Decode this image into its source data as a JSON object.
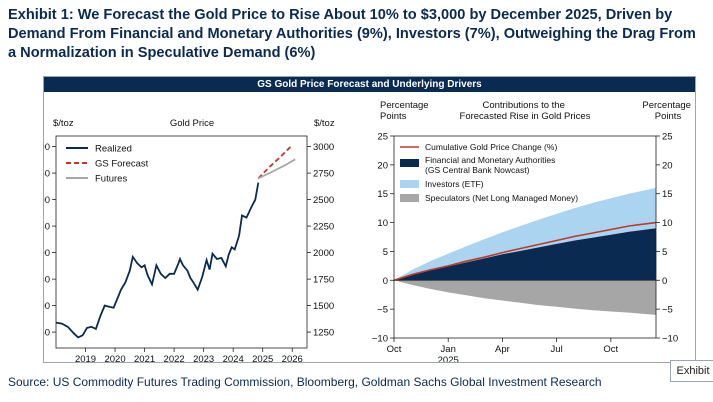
{
  "headline": "Exhibit 1: We Forecast the Gold Price to Rise About 10% to $3,000 by December 2025, Driven by Demand From Financial and Monetary Authorities (9%), Investors (7%), Outweighing the Drag From a Normalization in Speculative Demand (6%)",
  "banner": "GS Gold Price Forecast and Underlying Drivers",
  "source": "Source: US Commodity Futures Trading Commission, Bloomberg, Goldman Sachs Global Investment Research",
  "tag_label": "Exhibit",
  "colors": {
    "navy": "#0b2a52",
    "red": "#c0392b",
    "gray": "#a6a6a6",
    "light_blue": "#aad4f0"
  },
  "chart_data": [
    {
      "type": "line",
      "title": "Gold Price",
      "ylabel_left": "$/toz",
      "ylabel_right": "$/toz",
      "ylim": [
        1100,
        3100
      ],
      "yticks": [
        1250,
        1500,
        1750,
        2000,
        2250,
        2500,
        2750,
        3000
      ],
      "xlim": [
        2018.0,
        2026.5
      ],
      "xticks": [
        "2019",
        "2020",
        "2021",
        "2022",
        "2023",
        "2024",
        "2025",
        "2026"
      ],
      "xtick_values": [
        2019,
        2020,
        2021,
        2022,
        2023,
        2024,
        2025,
        2026
      ],
      "legend": [
        "Realized",
        "GS Forecast",
        "Futures"
      ],
      "series": [
        {
          "name": "Realized",
          "color": "#0b2a52",
          "style": "solid",
          "points": [
            [
              2018.0,
              1340
            ],
            [
              2018.2,
              1330
            ],
            [
              2018.4,
              1300
            ],
            [
              2018.6,
              1240
            ],
            [
              2018.75,
              1200
            ],
            [
              2018.9,
              1220
            ],
            [
              2019.05,
              1290
            ],
            [
              2019.2,
              1300
            ],
            [
              2019.35,
              1280
            ],
            [
              2019.5,
              1400
            ],
            [
              2019.65,
              1500
            ],
            [
              2019.8,
              1490
            ],
            [
              2019.95,
              1480
            ],
            [
              2020.1,
              1580
            ],
            [
              2020.2,
              1650
            ],
            [
              2020.35,
              1720
            ],
            [
              2020.5,
              1830
            ],
            [
              2020.6,
              1960
            ],
            [
              2020.75,
              1900
            ],
            [
              2020.9,
              1860
            ],
            [
              2021.0,
              1880
            ],
            [
              2021.1,
              1790
            ],
            [
              2021.25,
              1700
            ],
            [
              2021.4,
              1880
            ],
            [
              2021.55,
              1800
            ],
            [
              2021.7,
              1760
            ],
            [
              2021.85,
              1800
            ],
            [
              2022.0,
              1800
            ],
            [
              2022.15,
              1900
            ],
            [
              2022.2,
              1940
            ],
            [
              2022.3,
              1880
            ],
            [
              2022.45,
              1830
            ],
            [
              2022.55,
              1760
            ],
            [
              2022.65,
              1720
            ],
            [
              2022.8,
              1650
            ],
            [
              2022.95,
              1770
            ],
            [
              2023.1,
              1930
            ],
            [
              2023.2,
              1840
            ],
            [
              2023.3,
              1990
            ],
            [
              2023.45,
              1940
            ],
            [
              2023.6,
              1950
            ],
            [
              2023.75,
              1870
            ],
            [
              2023.85,
              1980
            ],
            [
              2023.95,
              2050
            ],
            [
              2024.05,
              2030
            ],
            [
              2024.2,
              2160
            ],
            [
              2024.3,
              2350
            ],
            [
              2024.45,
              2330
            ],
            [
              2024.6,
              2420
            ],
            [
              2024.75,
              2500
            ],
            [
              2024.85,
              2660
            ]
          ]
        },
        {
          "name": "GS Forecast",
          "color": "#c0392b",
          "style": "dashed",
          "points": [
            [
              2024.85,
              2700
            ],
            [
              2025.2,
              2800
            ],
            [
              2025.55,
              2890
            ],
            [
              2025.95,
              3000
            ]
          ]
        },
        {
          "name": "Futures",
          "color": "#a6a6a6",
          "style": "solid",
          "points": [
            [
              2024.85,
              2700
            ],
            [
              2025.3,
              2760
            ],
            [
              2025.8,
              2830
            ],
            [
              2026.1,
              2880
            ]
          ]
        }
      ]
    },
    {
      "type": "area",
      "title": "Contributions to the Forecasted Rise in Gold Prices",
      "ylabel_left": "Percentage Points",
      "ylabel_right": "Percentage Points",
      "ylim": [
        -10,
        25
      ],
      "yticks": [
        -10,
        -5,
        0,
        5,
        10,
        15,
        20,
        25
      ],
      "xticks": [
        "Oct",
        "Jan",
        "Apr",
        "Jul",
        "Oct"
      ],
      "xtick_months": [
        0,
        3,
        6,
        9,
        12
      ],
      "xlim": [
        0,
        14.5
      ],
      "year_label": "2025",
      "legend": [
        "Cumulative Gold Price Change (%)",
        "Financial and Monetary Authorities",
        "(GS Central Bank Nowcast)",
        "Investors (ETF)",
        "Speculators (Net Long Managed Money)"
      ],
      "x": [
        0,
        1,
        2,
        3,
        4,
        5,
        6,
        7,
        8,
        9,
        10,
        11,
        12,
        13,
        14.5
      ],
      "series": [
        {
          "name": "Financial and Monetary Authorities (GS Central Bank Nowcast)",
          "color": "#0b2a52",
          "values": [
            0,
            0.9,
            1.7,
            2.4,
            3.1,
            3.8,
            4.5,
            5.1,
            5.7,
            6.3,
            6.9,
            7.4,
            7.9,
            8.4,
            9.0
          ]
        },
        {
          "name": "Investors (ETF)",
          "color": "#aad4f0",
          "values": [
            0,
            0.9,
            1.6,
            2.2,
            2.8,
            3.3,
            3.8,
            4.3,
            4.8,
            5.2,
            5.6,
            6.0,
            6.3,
            6.6,
            7.0
          ]
        },
        {
          "name": "Speculators (Net Long Managed Money)",
          "color": "#a6a6a6",
          "values": [
            0,
            -0.8,
            -1.5,
            -2.1,
            -2.6,
            -3.1,
            -3.5,
            -3.9,
            -4.3,
            -4.6,
            -4.9,
            -5.2,
            -5.4,
            -5.6,
            -6.0
          ]
        },
        {
          "name": "Cumulative Gold Price Change (%)",
          "color": "#c0392b",
          "values": [
            0,
            1.0,
            1.8,
            2.5,
            3.3,
            4.0,
            4.8,
            5.5,
            6.2,
            6.9,
            7.6,
            8.2,
            8.8,
            9.4,
            10.0
          ]
        }
      ]
    }
  ]
}
